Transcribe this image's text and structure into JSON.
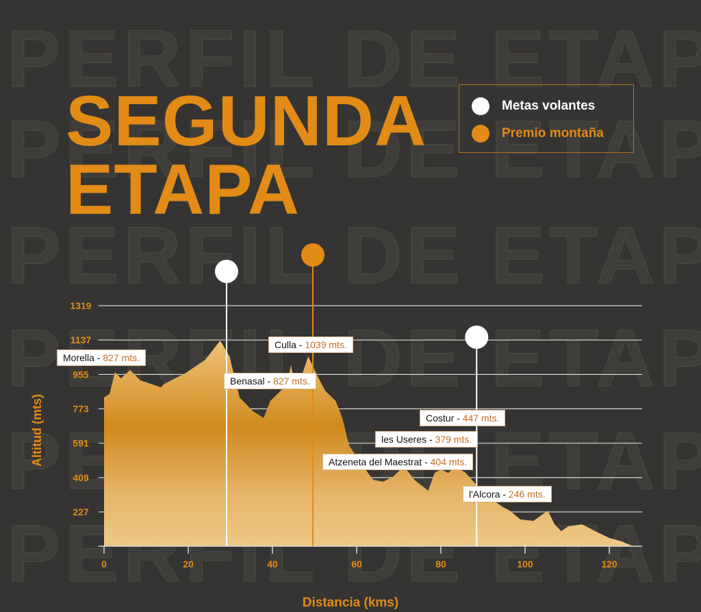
{
  "watermark": "PERFIL DE ETAPA",
  "title": {
    "line1": "SEGUNDA",
    "line2": "ETAPA"
  },
  "legend": [
    {
      "label": "Metas volantes",
      "color": "#ffffff"
    },
    {
      "label": "Premio montaña",
      "color": "#e28b17"
    }
  ],
  "colors": {
    "accent": "#e28b17",
    "background": "#353433"
  },
  "chart_data": {
    "type": "area",
    "xlabel": "Distancia (kms)",
    "ylabel": "Altitud (mts)",
    "xlim": [
      0,
      127
    ],
    "ylim": [
      45,
      1319
    ],
    "x_ticks": [
      "0",
      "20",
      "40",
      "60",
      "80",
      "100",
      "120"
    ],
    "y_ticks": [
      "1319",
      "1137",
      "955",
      "773",
      "591",
      "409",
      "227"
    ],
    "grid": true,
    "x": [
      0,
      1.3,
      2.6,
      4,
      6.2,
      8.6,
      13.5,
      14.3,
      19.2,
      24,
      27.6,
      29.8,
      32.2,
      35.4,
      37.9,
      39.5,
      42,
      44,
      44.4,
      45,
      46,
      48.5,
      50.4,
      52.5,
      55,
      56.6,
      58.2,
      61.5,
      63.9,
      66.3,
      68.8,
      71.2,
      73.7,
      77,
      78.5,
      80,
      81.8,
      83.4,
      85.9,
      89.1,
      92.4,
      94.8,
      96.4,
      98.9,
      102,
      105.4,
      107,
      108.6,
      110.2,
      113.5,
      116.7,
      120,
      123,
      125.7
    ],
    "y": [
      833,
      851,
      967,
      934,
      978,
      924,
      887,
      905,
      960,
      1032,
      1134,
      1050,
      833,
      760,
      724,
      815,
      869,
      960,
      1007,
      930,
      887,
      1050,
      960,
      869,
      815,
      724,
      579,
      470,
      397,
      387,
      416,
      470,
      397,
      339,
      434,
      452,
      434,
      470,
      434,
      354,
      289,
      252,
      234,
      187,
      180,
      234,
      162,
      125,
      151,
      162,
      125,
      89,
      71,
      45
    ],
    "markers": [
      {
        "type": "Metas volantes",
        "km": 29.1
      },
      {
        "type": "Premio montaña",
        "km": 49.6
      },
      {
        "type": "Metas volantes",
        "km": 88.5
      }
    ],
    "annotations": [
      {
        "place": "Morella",
        "value": "827 mts."
      },
      {
        "place": "Culla",
        "value": "1039 mts."
      },
      {
        "place": "Benasal",
        "value": "827 mts."
      },
      {
        "place": "Costur",
        "value": "447 mts."
      },
      {
        "place": "les Useres",
        "value": "379 mts."
      },
      {
        "place": "Atzeneta del Maestrat",
        "value": "404 mts."
      },
      {
        "place": "l'Alcora",
        "value": "246 mts."
      }
    ]
  }
}
